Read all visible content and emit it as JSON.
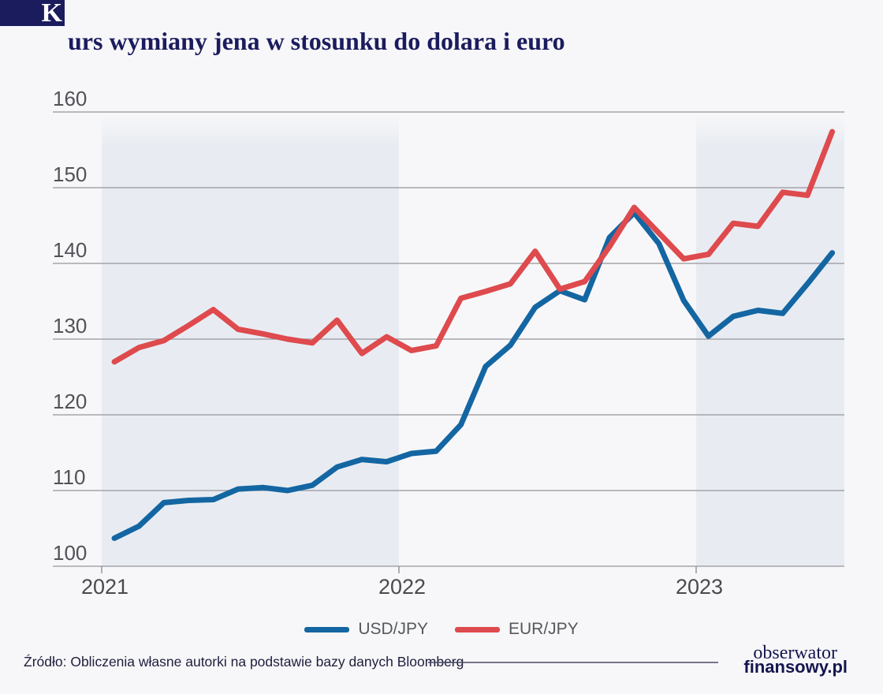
{
  "title": {
    "initial": "K",
    "rest": "urs wymiany jena w stosunku do dolara i euro"
  },
  "legend": [
    {
      "label": "USD/JPY",
      "color": "#1366a2"
    },
    {
      "label": "EUR/JPY",
      "color": "#de4a4d"
    }
  ],
  "footer": {
    "source": "Źródło: Obliczenia własne autorki na podstawie bazy danych Bloomberg",
    "logo_line1": "obserwator",
    "logo_line2": "finansowy.pl"
  },
  "colors": {
    "background": "#f7f7f9",
    "band": "#e8ecf2",
    "gridline": "#95959b",
    "tick_label": "#515157",
    "year_label": "#4a4a4e",
    "navy": "#1b1c5e"
  },
  "chart_data": {
    "type": "line",
    "title": "Kurs wymiany jena w stosunku do dolara i euro",
    "x_unit": "month",
    "categories": [
      "2021-01",
      "2021-02",
      "2021-03",
      "2021-04",
      "2021-05",
      "2021-06",
      "2021-07",
      "2021-08",
      "2021-09",
      "2021-10",
      "2021-11",
      "2021-12",
      "2022-01",
      "2022-02",
      "2022-03",
      "2022-04",
      "2022-05",
      "2022-06",
      "2022-07",
      "2022-08",
      "2022-09",
      "2022-10",
      "2022-11",
      "2022-12",
      "2023-01",
      "2023-02",
      "2023-03",
      "2023-04",
      "2023-05",
      "2023-06"
    ],
    "series": [
      {
        "name": "USD/JPY",
        "color": "#1366a2",
        "values": [
          103.7,
          105.3,
          108.4,
          108.7,
          108.8,
          110.2,
          110.4,
          110.0,
          110.7,
          113.1,
          114.1,
          113.8,
          114.9,
          115.2,
          118.7,
          126.4,
          129.2,
          134.2,
          136.4,
          135.2,
          143.4,
          146.7,
          142.6,
          135.1,
          130.4,
          133.0,
          133.8,
          133.4,
          137.3,
          141.4
        ]
      },
      {
        "name": "EUR/JPY",
        "color": "#de4a4d",
        "values": [
          127.0,
          128.9,
          129.8,
          131.8,
          133.9,
          131.3,
          130.7,
          130.0,
          129.5,
          132.5,
          128.1,
          130.3,
          128.5,
          129.1,
          135.4,
          136.3,
          137.3,
          141.6,
          136.6,
          137.6,
          142.2,
          147.4,
          144.0,
          140.6,
          141.2,
          145.3,
          144.9,
          149.4,
          149.0,
          157.4
        ]
      }
    ],
    "ylim": [
      100,
      160
    ],
    "yticks": [
      100,
      110,
      120,
      130,
      140,
      150,
      160
    ],
    "x_year_ticks": [
      "2021",
      "2022",
      "2023"
    ],
    "shaded_years": [
      "2021",
      "2023"
    ],
    "grid": true,
    "legend_position": "bottom"
  }
}
